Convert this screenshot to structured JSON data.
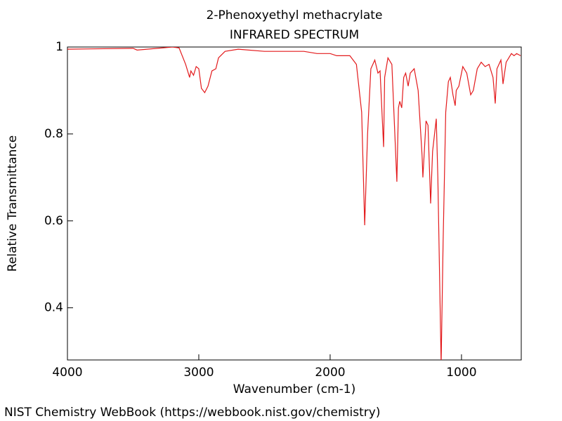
{
  "chart_data": {
    "type": "line",
    "title": "2-Phenoxyethyl methacrylate",
    "subtitle": "INFRARED SPECTRUM",
    "xlabel": "Wavenumber (cm-1)",
    "ylabel": "Relative Transmittance",
    "source": "NIST Chemistry WebBook (https://webbook.nist.gov/chemistry)",
    "color": "#e31a1c",
    "xlim": [
      4000,
      545
    ],
    "ylim": [
      0.28,
      1
    ],
    "xticks": [
      4000,
      3000,
      2000,
      1000
    ],
    "yticks": [
      0.4,
      0.6,
      0.8,
      1
    ],
    "x": [
      4000,
      3500,
      3470,
      3200,
      3150,
      3100,
      3070,
      3060,
      3040,
      3020,
      3000,
      2980,
      2955,
      2930,
      2900,
      2870,
      2850,
      2800,
      2700,
      2500,
      2200,
      2100,
      2000,
      1950,
      1850,
      1800,
      1760,
      1737,
      1715,
      1690,
      1660,
      1636,
      1620,
      1593,
      1585,
      1560,
      1530,
      1492,
      1480,
      1470,
      1455,
      1440,
      1425,
      1406,
      1390,
      1360,
      1330,
      1300,
      1294,
      1270,
      1255,
      1235,
      1220,
      1192,
      1180,
      1155,
      1140,
      1120,
      1100,
      1085,
      1065,
      1048,
      1040,
      1020,
      990,
      960,
      930,
      910,
      880,
      850,
      820,
      790,
      760,
      743,
      730,
      700,
      690,
      684,
      660,
      620,
      600,
      580,
      550
    ],
    "values": [
      0.995,
      0.997,
      0.993,
      1.0,
      0.998,
      0.96,
      0.93,
      0.945,
      0.935,
      0.955,
      0.95,
      0.905,
      0.895,
      0.91,
      0.945,
      0.95,
      0.975,
      0.99,
      0.995,
      0.99,
      0.99,
      0.985,
      0.985,
      0.98,
      0.98,
      0.96,
      0.85,
      0.59,
      0.8,
      0.95,
      0.97,
      0.94,
      0.945,
      0.77,
      0.93,
      0.975,
      0.96,
      0.69,
      0.86,
      0.875,
      0.86,
      0.93,
      0.94,
      0.91,
      0.94,
      0.95,
      0.9,
      0.75,
      0.7,
      0.83,
      0.82,
      0.64,
      0.76,
      0.835,
      0.7,
      0.27,
      0.55,
      0.85,
      0.92,
      0.93,
      0.89,
      0.865,
      0.9,
      0.91,
      0.955,
      0.94,
      0.89,
      0.9,
      0.95,
      0.965,
      0.955,
      0.96,
      0.93,
      0.87,
      0.95,
      0.97,
      0.94,
      0.915,
      0.965,
      0.985,
      0.98,
      0.985,
      0.98
    ]
  }
}
